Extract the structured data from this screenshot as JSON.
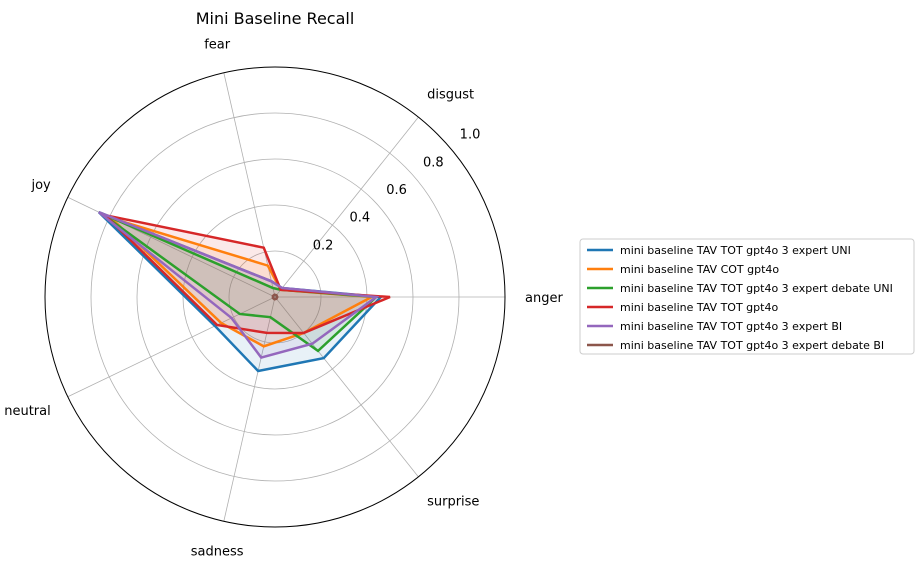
{
  "chart_data": {
    "type": "radar",
    "title": "Mini Baseline Recall",
    "categories": [
      "anger",
      "disgust",
      "fear",
      "joy",
      "neutral",
      "sadness",
      "surprise"
    ],
    "radial_ticks": [
      0.2,
      0.4,
      0.6,
      0.8,
      1.0
    ],
    "radial_tick_labels": [
      "0.2",
      "0.4",
      "0.6",
      "0.8",
      "1.0"
    ],
    "rlim": [
      0,
      1.0
    ],
    "grid": true,
    "legend_position": "right",
    "series": [
      {
        "name": "mini baseline TAV TOT gpt4o 3 expert UNI",
        "color": "#1f77b4",
        "values": [
          0.46,
          0.05,
          0.07,
          0.85,
          0.29,
          0.33,
          0.34
        ]
      },
      {
        "name": "mini baseline TAV COT gpt4o",
        "color": "#ff7f0e",
        "values": [
          0.42,
          0.04,
          0.14,
          0.79,
          0.26,
          0.22,
          0.2
        ]
      },
      {
        "name": "mini baseline TAV TOT gpt4o 3 expert debate UNI",
        "color": "#2ca02c",
        "values": [
          0.44,
          0.04,
          0.04,
          0.84,
          0.17,
          0.09,
          0.3
        ]
      },
      {
        "name": "mini baseline TAV TOT gpt4o",
        "color": "#d62728",
        "values": [
          0.5,
          0.04,
          0.22,
          0.82,
          0.28,
          0.16,
          0.2
        ]
      },
      {
        "name": "mini baseline TAV TOT gpt4o 3 expert BI",
        "color": "#9467bd",
        "values": [
          0.44,
          0.05,
          0.07,
          0.85,
          0.21,
          0.27,
          0.26
        ]
      },
      {
        "name": "mini baseline TAV TOT gpt4o 3 expert debate BI",
        "color": "#8c564b",
        "values": [
          0.01,
          0.01,
          0.01,
          0.01,
          0.01,
          0.01,
          0.01
        ]
      }
    ]
  }
}
